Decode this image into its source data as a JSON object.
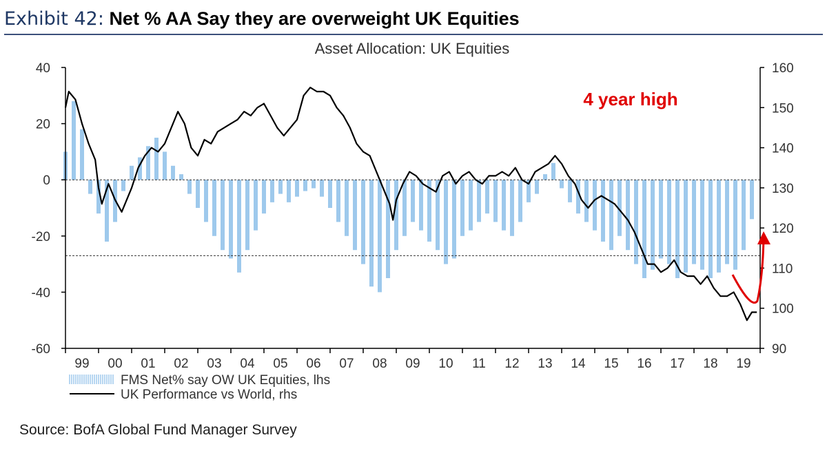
{
  "header": {
    "label": "Exhibit 42:",
    "title": "Net % AA Say they are overweight UK Equities"
  },
  "source": "Source: BofA Global Fund Manager Survey",
  "annotation": {
    "text": "4 year high",
    "color": "#e00000"
  },
  "chart_data": {
    "type": "bar+line",
    "title": "Asset Allocation: UK Equities",
    "x_labels": [
      "99",
      "00",
      "01",
      "02",
      "03",
      "04",
      "05",
      "06",
      "07",
      "08",
      "09",
      "10",
      "11",
      "12",
      "13",
      "14",
      "15",
      "16",
      "17",
      "18",
      "19"
    ],
    "x_range": [
      1999.0,
      2020.0
    ],
    "y_left": {
      "range": [
        -60,
        40
      ],
      "ticks": [
        "-60",
        "-40",
        "-20",
        "0",
        "20",
        "40"
      ],
      "ref_lines": [
        0,
        -27
      ]
    },
    "y_right": {
      "range": [
        90,
        160
      ],
      "ticks": [
        "90",
        "100",
        "110",
        "120",
        "130",
        "140",
        "150",
        "160"
      ]
    },
    "legend": [
      {
        "label": "FMS Net% say OW UK Equities, lhs",
        "color": "#9ec9ec",
        "kind": "bars"
      },
      {
        "label": "UK Performance vs World, rhs",
        "color": "#000000",
        "kind": "line"
      }
    ],
    "series": [
      {
        "name": "FMS Net% say OW UK Equities, lhs",
        "axis": "left",
        "points": [
          [
            1999.0,
            10
          ],
          [
            1999.25,
            28
          ],
          [
            1999.5,
            18
          ],
          [
            1999.75,
            -5
          ],
          [
            2000.0,
            -12
          ],
          [
            2000.25,
            -22
          ],
          [
            2000.5,
            -15
          ],
          [
            2000.75,
            -4
          ],
          [
            2001.0,
            5
          ],
          [
            2001.25,
            8
          ],
          [
            2001.5,
            12
          ],
          [
            2001.75,
            15
          ],
          [
            2002.0,
            10
          ],
          [
            2002.25,
            5
          ],
          [
            2002.5,
            2
          ],
          [
            2002.75,
            -5
          ],
          [
            2003.0,
            -10
          ],
          [
            2003.25,
            -15
          ],
          [
            2003.5,
            -20
          ],
          [
            2003.75,
            -25
          ],
          [
            2004.0,
            -28
          ],
          [
            2004.25,
            -33
          ],
          [
            2004.5,
            -25
          ],
          [
            2004.75,
            -18
          ],
          [
            2005.0,
            -12
          ],
          [
            2005.25,
            -8
          ],
          [
            2005.5,
            -5
          ],
          [
            2005.75,
            -8
          ],
          [
            2006.0,
            -6
          ],
          [
            2006.25,
            -4
          ],
          [
            2006.5,
            -3
          ],
          [
            2006.75,
            -6
          ],
          [
            2007.0,
            -10
          ],
          [
            2007.25,
            -15
          ],
          [
            2007.5,
            -20
          ],
          [
            2007.75,
            -25
          ],
          [
            2008.0,
            -30
          ],
          [
            2008.25,
            -38
          ],
          [
            2008.5,
            -40
          ],
          [
            2008.75,
            -35
          ],
          [
            2009.0,
            -25
          ],
          [
            2009.25,
            -20
          ],
          [
            2009.5,
            -15
          ],
          [
            2009.75,
            -18
          ],
          [
            2010.0,
            -22
          ],
          [
            2010.25,
            -25
          ],
          [
            2010.5,
            -30
          ],
          [
            2010.75,
            -28
          ],
          [
            2011.0,
            -20
          ],
          [
            2011.25,
            -18
          ],
          [
            2011.5,
            -15
          ],
          [
            2011.75,
            -12
          ],
          [
            2012.0,
            -15
          ],
          [
            2012.25,
            -18
          ],
          [
            2012.5,
            -20
          ],
          [
            2012.75,
            -15
          ],
          [
            2013.0,
            -8
          ],
          [
            2013.25,
            -5
          ],
          [
            2013.5,
            2
          ],
          [
            2013.75,
            6
          ],
          [
            2014.0,
            -3
          ],
          [
            2014.25,
            -8
          ],
          [
            2014.5,
            -12
          ],
          [
            2014.75,
            -15
          ],
          [
            2015.0,
            -18
          ],
          [
            2015.25,
            -22
          ],
          [
            2015.5,
            -25
          ],
          [
            2015.75,
            -20
          ],
          [
            2016.0,
            -25
          ],
          [
            2016.25,
            -30
          ],
          [
            2016.5,
            -35
          ],
          [
            2016.75,
            -32
          ],
          [
            2017.0,
            -28
          ],
          [
            2017.25,
            -30
          ],
          [
            2017.5,
            -35
          ],
          [
            2017.75,
            -33
          ],
          [
            2018.0,
            -30
          ],
          [
            2018.25,
            -32
          ],
          [
            2018.5,
            -35
          ],
          [
            2018.75,
            -33
          ],
          [
            2019.0,
            -30
          ],
          [
            2019.25,
            -32
          ],
          [
            2019.5,
            -25
          ],
          [
            2019.75,
            -14
          ]
        ]
      },
      {
        "name": "UK Performance vs World, rhs",
        "axis": "right",
        "points": [
          [
            1999.0,
            150
          ],
          [
            1999.1,
            154
          ],
          [
            1999.3,
            152
          ],
          [
            1999.5,
            146
          ],
          [
            1999.7,
            141
          ],
          [
            1999.9,
            137
          ],
          [
            2000.0,
            130
          ],
          [
            2000.1,
            126
          ],
          [
            2000.3,
            131
          ],
          [
            2000.5,
            127
          ],
          [
            2000.7,
            124
          ],
          [
            2001.0,
            130
          ],
          [
            2001.2,
            135
          ],
          [
            2001.4,
            138
          ],
          [
            2001.6,
            140
          ],
          [
            2001.8,
            139
          ],
          [
            2002.0,
            141
          ],
          [
            2002.2,
            145
          ],
          [
            2002.4,
            149
          ],
          [
            2002.6,
            146
          ],
          [
            2002.8,
            140
          ],
          [
            2003.0,
            138
          ],
          [
            2003.2,
            142
          ],
          [
            2003.4,
            141
          ],
          [
            2003.6,
            144
          ],
          [
            2003.8,
            145
          ],
          [
            2004.0,
            146
          ],
          [
            2004.2,
            147
          ],
          [
            2004.4,
            149
          ],
          [
            2004.6,
            148
          ],
          [
            2004.8,
            150
          ],
          [
            2005.0,
            151
          ],
          [
            2005.2,
            148
          ],
          [
            2005.4,
            145
          ],
          [
            2005.6,
            143
          ],
          [
            2005.8,
            145
          ],
          [
            2006.0,
            147
          ],
          [
            2006.2,
            153
          ],
          [
            2006.4,
            155
          ],
          [
            2006.6,
            154
          ],
          [
            2006.8,
            154
          ],
          [
            2007.0,
            153
          ],
          [
            2007.2,
            150
          ],
          [
            2007.4,
            148
          ],
          [
            2007.6,
            145
          ],
          [
            2007.8,
            141
          ],
          [
            2008.0,
            139
          ],
          [
            2008.2,
            138
          ],
          [
            2008.4,
            134
          ],
          [
            2008.6,
            130
          ],
          [
            2008.8,
            126
          ],
          [
            2008.9,
            122
          ],
          [
            2009.0,
            127
          ],
          [
            2009.2,
            131
          ],
          [
            2009.4,
            134
          ],
          [
            2009.6,
            133
          ],
          [
            2009.8,
            131
          ],
          [
            2010.0,
            130
          ],
          [
            2010.2,
            129
          ],
          [
            2010.4,
            133
          ],
          [
            2010.6,
            134
          ],
          [
            2010.8,
            131
          ],
          [
            2011.0,
            133
          ],
          [
            2011.2,
            134
          ],
          [
            2011.4,
            132
          ],
          [
            2011.6,
            131
          ],
          [
            2011.8,
            133
          ],
          [
            2012.0,
            133
          ],
          [
            2012.2,
            134
          ],
          [
            2012.4,
            133
          ],
          [
            2012.6,
            135
          ],
          [
            2012.8,
            132
          ],
          [
            2013.0,
            131
          ],
          [
            2013.2,
            134
          ],
          [
            2013.4,
            135
          ],
          [
            2013.6,
            136
          ],
          [
            2013.8,
            138
          ],
          [
            2014.0,
            136
          ],
          [
            2014.2,
            133
          ],
          [
            2014.4,
            131
          ],
          [
            2014.6,
            127
          ],
          [
            2014.8,
            125
          ],
          [
            2015.0,
            127
          ],
          [
            2015.2,
            128
          ],
          [
            2015.4,
            127
          ],
          [
            2015.6,
            126
          ],
          [
            2015.8,
            124
          ],
          [
            2016.0,
            122
          ],
          [
            2016.2,
            119
          ],
          [
            2016.4,
            115
          ],
          [
            2016.6,
            111
          ],
          [
            2016.8,
            111
          ],
          [
            2017.0,
            109
          ],
          [
            2017.2,
            110
          ],
          [
            2017.4,
            112
          ],
          [
            2017.6,
            109
          ],
          [
            2017.8,
            108
          ],
          [
            2018.0,
            108
          ],
          [
            2018.2,
            106
          ],
          [
            2018.4,
            108
          ],
          [
            2018.6,
            105
          ],
          [
            2018.8,
            103
          ],
          [
            2019.0,
            103
          ],
          [
            2019.2,
            104
          ],
          [
            2019.4,
            101
          ],
          [
            2019.6,
            97
          ],
          [
            2019.75,
            99
          ],
          [
            2019.9,
            99
          ]
        ]
      }
    ]
  }
}
